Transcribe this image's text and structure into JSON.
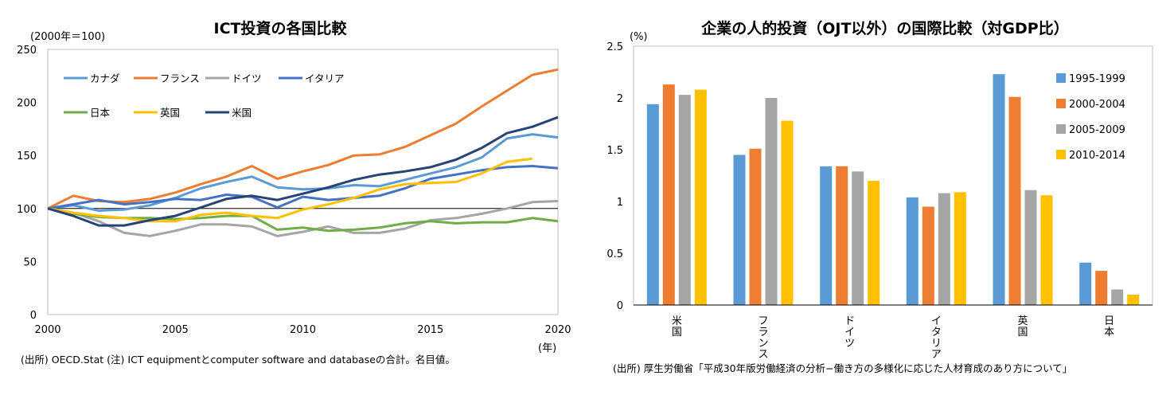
{
  "chart_data": [
    {
      "type": "line",
      "title": "ICT投資の各国比較",
      "ylabel": "(2000年＝100)",
      "xlabel": "(年)",
      "x": [
        2000,
        2001,
        2002,
        2003,
        2004,
        2005,
        2006,
        2007,
        2008,
        2009,
        2010,
        2011,
        2012,
        2013,
        2014,
        2015,
        2016,
        2017,
        2018,
        2019,
        2020
      ],
      "xticks": [
        2000,
        2005,
        2010,
        2015,
        2020
      ],
      "yticks": [
        0,
        50,
        100,
        150,
        200,
        250
      ],
      "ylim": [
        0,
        250
      ],
      "xlim": [
        2000,
        2020
      ],
      "reference_line": 100,
      "series": [
        {
          "name": "カナダ",
          "color": "#5b9bd5",
          "values": [
            100,
            103,
            98,
            99,
            103,
            110,
            119,
            125,
            130,
            120,
            118,
            119,
            122,
            121,
            127,
            133,
            139,
            148,
            166,
            170,
            167
          ]
        },
        {
          "name": "フランス",
          "color": "#ed7d31",
          "values": [
            100,
            112,
            107,
            106,
            109,
            115,
            123,
            130,
            140,
            128,
            135,
            141,
            150,
            151,
            158,
            169,
            180,
            196,
            211,
            226,
            231
          ]
        },
        {
          "name": "ドイツ",
          "color": "#a5a5a5",
          "values": [
            100,
            96,
            88,
            77,
            74,
            79,
            85,
            85,
            83,
            74,
            78,
            83,
            77,
            77,
            81,
            89,
            91,
            95,
            100,
            106,
            107
          ]
        },
        {
          "name": "イタリア",
          "color": "#4472c4",
          "values": [
            100,
            104,
            108,
            104,
            106,
            109,
            108,
            113,
            111,
            101,
            111,
            108,
            110,
            112,
            119,
            128,
            132,
            136,
            139,
            140,
            138
          ]
        },
        {
          "name": "日本",
          "color": "#70ad47",
          "values": [
            100,
            95,
            92,
            91,
            91,
            90,
            91,
            93,
            93,
            80,
            82,
            79,
            80,
            82,
            86,
            88,
            86,
            87,
            87,
            91,
            88
          ]
        },
        {
          "name": "英国",
          "color": "#ffc000",
          "values": [
            100,
            96,
            93,
            91,
            88,
            88,
            94,
            96,
            93,
            91,
            99,
            104,
            110,
            118,
            123,
            124,
            125,
            133,
            144,
            147,
            null
          ]
        },
        {
          "name": "米国",
          "color": "#264478",
          "values": [
            100,
            93,
            84,
            84,
            89,
            93,
            101,
            109,
            112,
            108,
            114,
            120,
            127,
            132,
            135,
            139,
            146,
            157,
            171,
            177,
            186
          ]
        }
      ],
      "source_note": "(出所) OECD.Stat (注) ICT equipmentとcomputer software and databaseの合計。名目値。"
    },
    {
      "type": "bar",
      "title": "企業の人的投資（OJT以外）の国際比較（対GDP比）",
      "ylabel": "(%)",
      "categories": [
        "米国",
        "フランス",
        "ドイツ",
        "イタリア",
        "英国",
        "日本"
      ],
      "yticks": [
        "0",
        "0.5",
        "1",
        "1.5",
        "2",
        "2.5"
      ],
      "ylim": [
        0,
        2.5
      ],
      "series": [
        {
          "name": "1995-1999",
          "color": "#5b9bd5",
          "values": [
            1.94,
            1.45,
            1.34,
            1.04,
            2.23,
            0.41
          ]
        },
        {
          "name": "2000-2004",
          "color": "#ed7d31",
          "values": [
            2.13,
            1.51,
            1.34,
            0.95,
            2.01,
            0.33
          ]
        },
        {
          "name": "2005-2009",
          "color": "#a5a5a5",
          "values": [
            2.03,
            2.0,
            1.29,
            1.08,
            1.11,
            0.15
          ]
        },
        {
          "name": "2010-2014",
          "color": "#ffc000",
          "values": [
            2.08,
            1.78,
            1.2,
            1.09,
            1.06,
            0.1
          ]
        }
      ],
      "source_note": "(出所) 厚生労働省「平成30年版労働経済の分析−働き方の多様化に応じた人材育成のあり方について」"
    }
  ]
}
